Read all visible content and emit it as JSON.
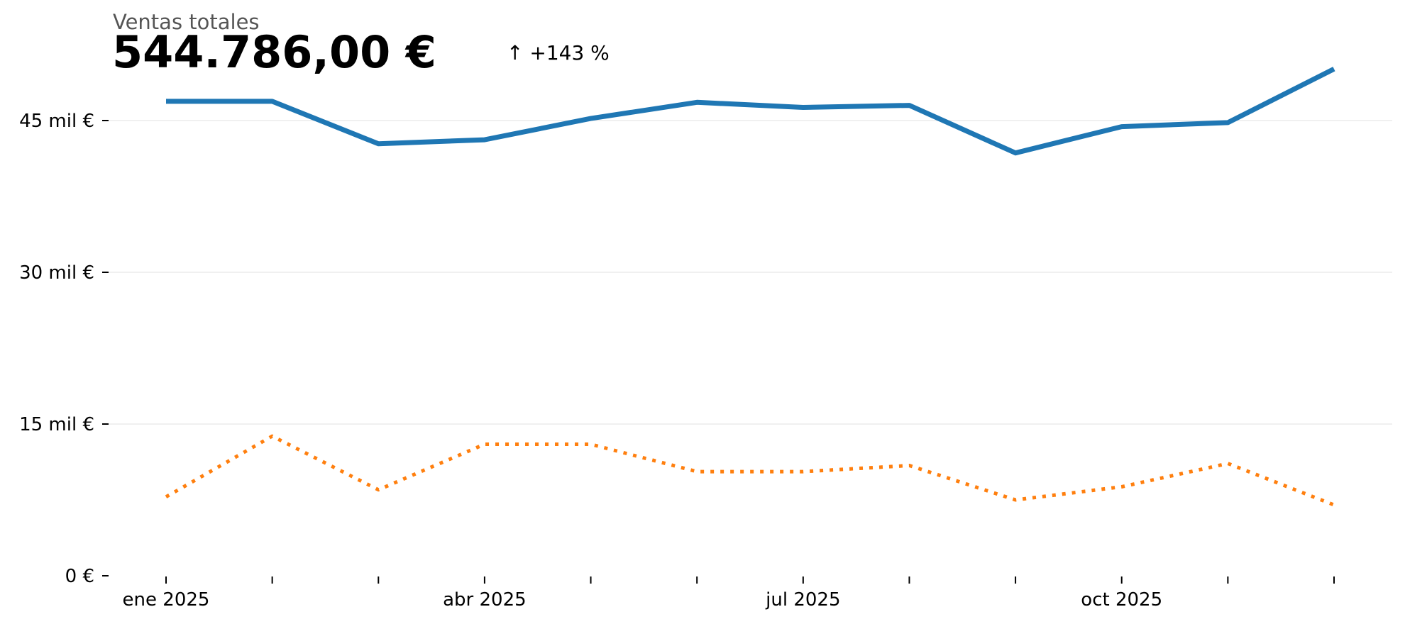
{
  "kpi": {
    "label": "Ventas totales",
    "value": "544.786,00 €",
    "delta": "↑ +143 %"
  },
  "colors": {
    "primary": "#1f77b4",
    "secondary": "#ff7f0e",
    "grid": "#e6e6e6"
  },
  "chart_data": {
    "type": "line",
    "x": [
      "2025-01",
      "2025-02",
      "2025-03",
      "2025-04",
      "2025-05",
      "2025-06",
      "2025-07",
      "2025-08",
      "2025-09",
      "2025-10",
      "2025-11",
      "2025-12"
    ],
    "x_tick_labels": [
      {
        "x": "2025-01",
        "label": "ene 2025"
      },
      {
        "x": "2025-04",
        "label": "abr 2025"
      },
      {
        "x": "2025-07",
        "label": "jul 2025"
      },
      {
        "x": "2025-10",
        "label": "oct 2025"
      }
    ],
    "y_ticks": [
      {
        "value": 0,
        "label": "0 €"
      },
      {
        "value": 15000,
        "label": "15 mil €"
      },
      {
        "value": 30000,
        "label": "30 mil €"
      },
      {
        "value": 45000,
        "label": "45 mil €"
      }
    ],
    "ylim": [
      0,
      48500
    ],
    "grid": true,
    "series": [
      {
        "style": "solid",
        "values": [
          46900,
          46900,
          42700,
          43100,
          45200,
          46800,
          46300,
          46500,
          41800,
          44400,
          44800,
          50100
        ]
      },
      {
        "style": "dotted",
        "values": [
          7800,
          13800,
          8500,
          13000,
          13000,
          10300,
          10300,
          10900,
          7500,
          8800,
          11100,
          7000
        ]
      }
    ]
  }
}
